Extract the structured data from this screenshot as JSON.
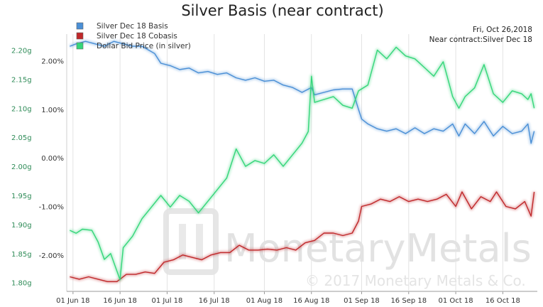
{
  "chart_data": {
    "type": "line",
    "title": "Silver Basis (near contract)",
    "annotations": {
      "date": "Fri, Oct 26,2018",
      "contract": "Near contract:Silver Dec 18"
    },
    "watermark": {
      "brand": "MonetaryMetals",
      "copyright": "© 2017 Monetary Metals & Co."
    },
    "legend": {
      "placement": "top-left"
    },
    "x_axis": {
      "range": [
        "2018-05-30",
        "2018-10-27"
      ],
      "ticks": [
        "01 Jun 18",
        "16 Jun 18",
        "01 Jul 18",
        "16 Jul 18",
        "01 Aug 18",
        "16 Aug 18",
        "01 Sep 18",
        "16 Sep 18",
        "01 Oct 18",
        "16 Oct 18"
      ],
      "tick_dates": [
        "2018-06-01",
        "2018-06-16",
        "2018-07-01",
        "2018-07-16",
        "2018-08-01",
        "2018-08-16",
        "2018-09-01",
        "2018-09-16",
        "2018-10-01",
        "2018-10-16"
      ]
    },
    "y_left": {
      "unit": "%",
      "range": [
        -2.75,
        2.55
      ],
      "ticks": [
        "2.00%",
        "1.00%",
        "0.00%",
        "-1.00%",
        "-2.00%"
      ],
      "tick_values": [
        2,
        1,
        0,
        -1,
        -2
      ]
    },
    "y_right": {
      "unit": "g",
      "range": [
        1.785,
        2.2275
      ],
      "ticks": [
        "2.20g",
        "2.15g",
        "2.10g",
        "2.05g",
        "2.00g",
        "1.95g",
        "1.90g",
        "1.85g",
        "1.80g"
      ],
      "tick_values": [
        2.2,
        2.15,
        2.1,
        2.05,
        2.0,
        1.95,
        1.9,
        1.85,
        1.8
      ]
    },
    "series": [
      {
        "name": "Silver Dec 18 Basis",
        "axis": "left",
        "color": "#4a8fd6",
        "points": [
          [
            "2018-05-31",
            2.3
          ],
          [
            "2018-06-02",
            2.35
          ],
          [
            "2018-06-05",
            2.4
          ],
          [
            "2018-06-08",
            2.35
          ],
          [
            "2018-06-11",
            2.3
          ],
          [
            "2018-06-14",
            2.4
          ],
          [
            "2018-06-17",
            2.35
          ],
          [
            "2018-06-20",
            2.3
          ],
          [
            "2018-06-23",
            2.3
          ],
          [
            "2018-06-27",
            2.15
          ],
          [
            "2018-06-29",
            1.95
          ],
          [
            "2018-07-02",
            1.9
          ],
          [
            "2018-07-05",
            1.82
          ],
          [
            "2018-07-08",
            1.85
          ],
          [
            "2018-07-11",
            1.75
          ],
          [
            "2018-07-14",
            1.78
          ],
          [
            "2018-07-17",
            1.72
          ],
          [
            "2018-07-20",
            1.75
          ],
          [
            "2018-07-23",
            1.65
          ],
          [
            "2018-07-26",
            1.6
          ],
          [
            "2018-07-29",
            1.65
          ],
          [
            "2018-08-01",
            1.58
          ],
          [
            "2018-08-04",
            1.6
          ],
          [
            "2018-08-07",
            1.5
          ],
          [
            "2018-08-10",
            1.45
          ],
          [
            "2018-08-13",
            1.35
          ],
          [
            "2018-08-16",
            1.45
          ],
          [
            "2018-08-17",
            1.3
          ],
          [
            "2018-08-20",
            1.35
          ],
          [
            "2018-08-23",
            1.4
          ],
          [
            "2018-08-26",
            1.42
          ],
          [
            "2018-08-29",
            1.42
          ],
          [
            "2018-08-31",
            1.0
          ],
          [
            "2018-09-01",
            0.8
          ],
          [
            "2018-09-03",
            0.7
          ],
          [
            "2018-09-06",
            0.6
          ],
          [
            "2018-09-09",
            0.55
          ],
          [
            "2018-09-12",
            0.6
          ],
          [
            "2018-09-15",
            0.5
          ],
          [
            "2018-09-18",
            0.62
          ],
          [
            "2018-09-21",
            0.5
          ],
          [
            "2018-09-24",
            0.6
          ],
          [
            "2018-09-27",
            0.55
          ],
          [
            "2018-09-30",
            0.7
          ],
          [
            "2018-10-02",
            0.45
          ],
          [
            "2018-10-04",
            0.7
          ],
          [
            "2018-10-07",
            0.5
          ],
          [
            "2018-10-10",
            0.75
          ],
          [
            "2018-10-13",
            0.45
          ],
          [
            "2018-10-16",
            0.65
          ],
          [
            "2018-10-19",
            0.5
          ],
          [
            "2018-10-22",
            0.55
          ],
          [
            "2018-10-24",
            0.7
          ],
          [
            "2018-10-25",
            0.3
          ],
          [
            "2018-10-26",
            0.55
          ]
        ]
      },
      {
        "name": "Silver Dec 18 Cobasis",
        "axis": "left",
        "color": "#c0282a",
        "points": [
          [
            "2018-05-31",
            -2.45
          ],
          [
            "2018-06-03",
            -2.5
          ],
          [
            "2018-06-06",
            -2.45
          ],
          [
            "2018-06-09",
            -2.5
          ],
          [
            "2018-06-12",
            -2.55
          ],
          [
            "2018-06-15",
            -2.55
          ],
          [
            "2018-06-18",
            -2.4
          ],
          [
            "2018-06-21",
            -2.4
          ],
          [
            "2018-06-24",
            -2.35
          ],
          [
            "2018-06-27",
            -2.38
          ],
          [
            "2018-06-30",
            -2.15
          ],
          [
            "2018-07-03",
            -2.1
          ],
          [
            "2018-07-06",
            -2.0
          ],
          [
            "2018-07-09",
            -2.05
          ],
          [
            "2018-07-12",
            -2.1
          ],
          [
            "2018-07-15",
            -2.0
          ],
          [
            "2018-07-18",
            -1.95
          ],
          [
            "2018-07-21",
            -1.95
          ],
          [
            "2018-07-24",
            -1.8
          ],
          [
            "2018-07-27",
            -1.9
          ],
          [
            "2018-07-30",
            -1.9
          ],
          [
            "2018-08-02",
            -1.88
          ],
          [
            "2018-08-05",
            -1.9
          ],
          [
            "2018-08-08",
            -1.85
          ],
          [
            "2018-08-11",
            -1.9
          ],
          [
            "2018-08-14",
            -1.75
          ],
          [
            "2018-08-17",
            -1.7
          ],
          [
            "2018-08-20",
            -1.55
          ],
          [
            "2018-08-23",
            -1.55
          ],
          [
            "2018-08-26",
            -1.6
          ],
          [
            "2018-08-29",
            -1.55
          ],
          [
            "2018-08-31",
            -1.3
          ],
          [
            "2018-09-01",
            -1.0
          ],
          [
            "2018-09-04",
            -0.95
          ],
          [
            "2018-09-07",
            -0.85
          ],
          [
            "2018-09-10",
            -0.9
          ],
          [
            "2018-09-13",
            -0.8
          ],
          [
            "2018-09-16",
            -0.9
          ],
          [
            "2018-09-19",
            -0.85
          ],
          [
            "2018-09-22",
            -0.9
          ],
          [
            "2018-09-25",
            -0.85
          ],
          [
            "2018-09-28",
            -0.75
          ],
          [
            "2018-10-01",
            -1.0
          ],
          [
            "2018-10-03",
            -0.7
          ],
          [
            "2018-10-06",
            -1.05
          ],
          [
            "2018-10-09",
            -0.8
          ],
          [
            "2018-10-12",
            -0.9
          ],
          [
            "2018-10-14",
            -0.7
          ],
          [
            "2018-10-17",
            -1.0
          ],
          [
            "2018-10-20",
            -1.05
          ],
          [
            "2018-10-23",
            -0.9
          ],
          [
            "2018-10-25",
            -1.2
          ],
          [
            "2018-10-26",
            -0.7
          ]
        ]
      },
      {
        "name": "Dollar Bid Price (in silver)",
        "axis": "right",
        "color": "#35d67a",
        "points": [
          [
            "2018-05-31",
            1.89
          ],
          [
            "2018-06-02",
            1.885
          ],
          [
            "2018-06-04",
            1.892
          ],
          [
            "2018-06-07",
            1.89
          ],
          [
            "2018-06-09",
            1.87
          ],
          [
            "2018-06-11",
            1.84
          ],
          [
            "2018-06-13",
            1.85
          ],
          [
            "2018-06-15",
            1.82
          ],
          [
            "2018-06-16",
            1.805
          ],
          [
            "2018-06-17",
            1.86
          ],
          [
            "2018-06-20",
            1.88
          ],
          [
            "2018-06-23",
            1.91
          ],
          [
            "2018-06-26",
            1.93
          ],
          [
            "2018-06-29",
            1.95
          ],
          [
            "2018-07-02",
            1.93
          ],
          [
            "2018-07-05",
            1.95
          ],
          [
            "2018-07-08",
            1.94
          ],
          [
            "2018-07-11",
            1.92
          ],
          [
            "2018-07-14",
            1.94
          ],
          [
            "2018-07-17",
            1.96
          ],
          [
            "2018-07-20",
            1.98
          ],
          [
            "2018-07-23",
            2.03
          ],
          [
            "2018-07-26",
            2.0
          ],
          [
            "2018-07-29",
            2.01
          ],
          [
            "2018-08-01",
            2.005
          ],
          [
            "2018-08-04",
            2.02
          ],
          [
            "2018-08-07",
            2.0
          ],
          [
            "2018-08-10",
            2.02
          ],
          [
            "2018-08-13",
            2.04
          ],
          [
            "2018-08-15",
            2.06
          ],
          [
            "2018-08-16",
            2.155
          ],
          [
            "2018-08-17",
            2.11
          ],
          [
            "2018-08-20",
            2.115
          ],
          [
            "2018-08-23",
            2.12
          ],
          [
            "2018-08-26",
            2.105
          ],
          [
            "2018-08-29",
            2.1
          ],
          [
            "2018-08-31",
            2.13
          ],
          [
            "2018-09-03",
            2.14
          ],
          [
            "2018-09-06",
            2.2
          ],
          [
            "2018-09-09",
            2.185
          ],
          [
            "2018-09-12",
            2.205
          ],
          [
            "2018-09-15",
            2.19
          ],
          [
            "2018-09-18",
            2.185
          ],
          [
            "2018-09-21",
            2.17
          ],
          [
            "2018-09-24",
            2.155
          ],
          [
            "2018-09-27",
            2.18
          ],
          [
            "2018-09-30",
            2.12
          ],
          [
            "2018-10-02",
            2.1
          ],
          [
            "2018-10-04",
            2.12
          ],
          [
            "2018-10-07",
            2.135
          ],
          [
            "2018-10-10",
            2.175
          ],
          [
            "2018-10-13",
            2.125
          ],
          [
            "2018-10-16",
            2.11
          ],
          [
            "2018-10-19",
            2.13
          ],
          [
            "2018-10-22",
            2.125
          ],
          [
            "2018-10-24",
            2.115
          ],
          [
            "2018-10-25",
            2.125
          ],
          [
            "2018-10-26",
            2.1
          ]
        ]
      }
    ]
  }
}
